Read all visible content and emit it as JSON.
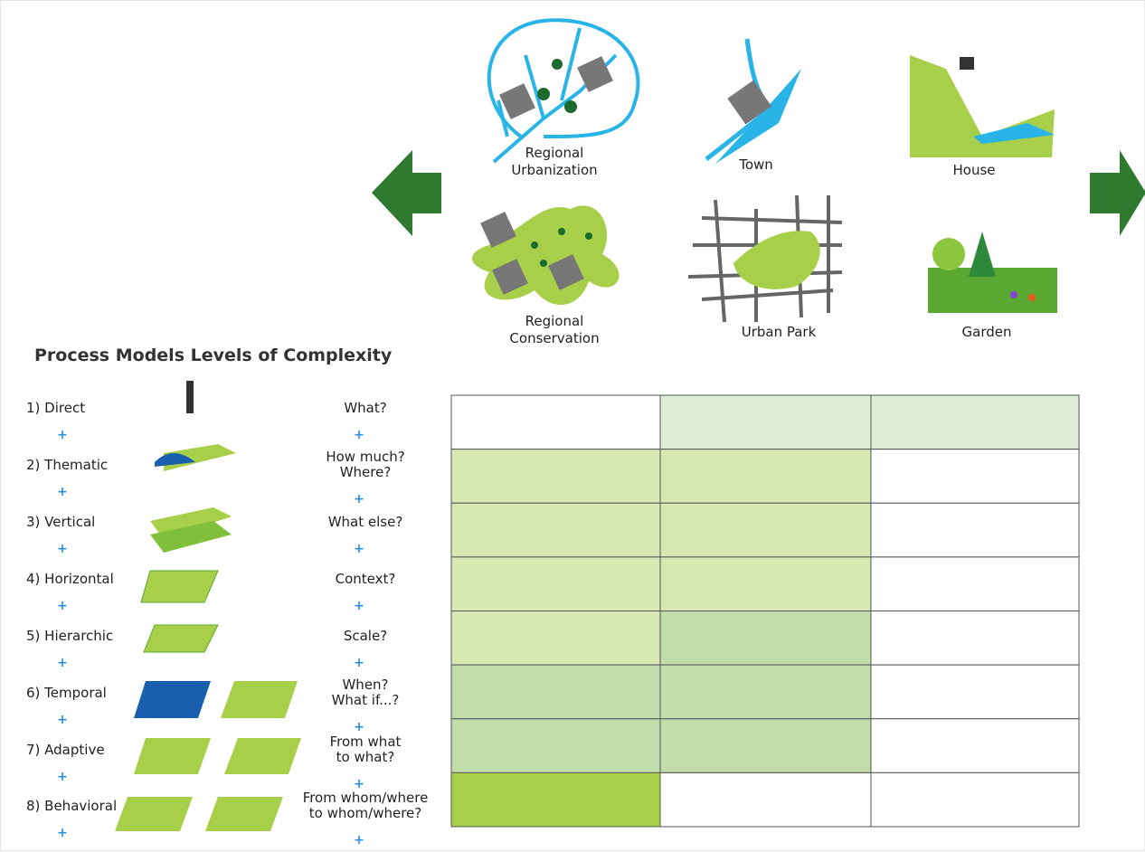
{
  "scales": [
    {
      "label": [
        "Regional",
        "Urbanization"
      ]
    },
    {
      "label": [
        "Town"
      ]
    },
    {
      "label": [
        "House"
      ]
    },
    {
      "label": [
        "Regional",
        "Conservation"
      ]
    },
    {
      "label": [
        "Urban Park"
      ]
    },
    {
      "label": [
        "Garden"
      ]
    }
  ],
  "title": "Process Models Levels of Complexity",
  "separator": "+",
  "levels": [
    {
      "label": "1) Direct",
      "question": [
        "What?"
      ]
    },
    {
      "label": "2) Thematic",
      "question": [
        "How much?",
        "Where?"
      ]
    },
    {
      "label": "3) Vertical",
      "question": [
        "What else?"
      ]
    },
    {
      "label": "4) Horizontal",
      "question": [
        "Context?"
      ]
    },
    {
      "label": "5) Hierarchic",
      "question": [
        "Scale?"
      ]
    },
    {
      "label": "6) Temporal",
      "question": [
        "When?",
        "What if...?"
      ]
    },
    {
      "label": "7) Adaptive",
      "question": [
        "From what",
        "to what?"
      ]
    },
    {
      "label": "8) Behavioral",
      "question": [
        "From whom/where",
        "to whom/where?"
      ]
    }
  ],
  "grid": [
    [
      "#ffffff",
      "#e0ecd5",
      "#e0ecd5"
    ],
    [
      "#d7e8b3",
      "#d7e8b3",
      "#ffffff"
    ],
    [
      "#d7e8b3",
      "#d7e8b3",
      "#ffffff"
    ],
    [
      "#d7e8b3",
      "#d7e8b3",
      "#ffffff"
    ],
    [
      "#d7e8b3",
      "#c2dcaa",
      "#ffffff"
    ],
    [
      "#c3dcac",
      "#c3dcac",
      "#ffffff"
    ],
    [
      "#c3dcac",
      "#c3dcac",
      "#ffffff"
    ],
    [
      "#a8cf4a",
      "#ffffff",
      "#ffffff"
    ]
  ]
}
